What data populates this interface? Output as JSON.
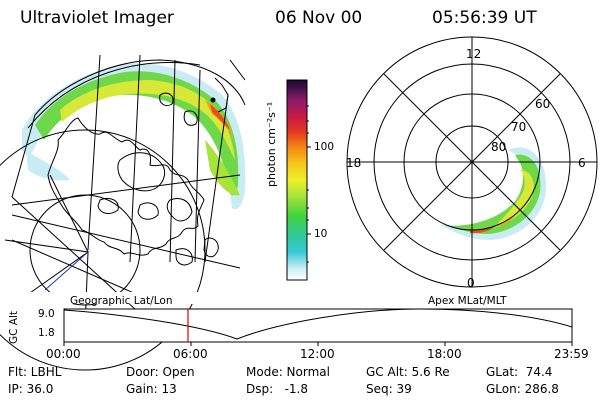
{
  "header": {
    "instrument": "Ultraviolet Imager",
    "date": "06 Nov 00",
    "time": "05:56:39 UT"
  },
  "colorbar": {
    "unit_label": "photon cm⁻²s⁻¹",
    "ticks": [
      "100",
      "10"
    ]
  },
  "polar_plot": {
    "labels": [
      "12",
      "60",
      "70",
      "80",
      "18",
      "6",
      "0"
    ]
  },
  "timeline": {
    "left_title": "Geographic Lat/Lon",
    "right_title": "Apex MLat/MLT",
    "axis_label": "GC Alt",
    "ymax": "9.0",
    "ymin": "1.8",
    "times": [
      "00:00",
      "06:00",
      "12:00",
      "18:00",
      "23:59"
    ],
    "cursor_time": "05:56:39"
  },
  "info": {
    "row1": [
      "Flt: LBHL",
      "Door: Open",
      "Mode: Normal",
      "GC Alt: 5.6 Re",
      "GLat:  74.4"
    ],
    "row2": [
      "IP: 36.0",
      "Gain: 13",
      "Dsp:   -1.8",
      "Seq: 39",
      "GLon: 286.8"
    ]
  }
}
